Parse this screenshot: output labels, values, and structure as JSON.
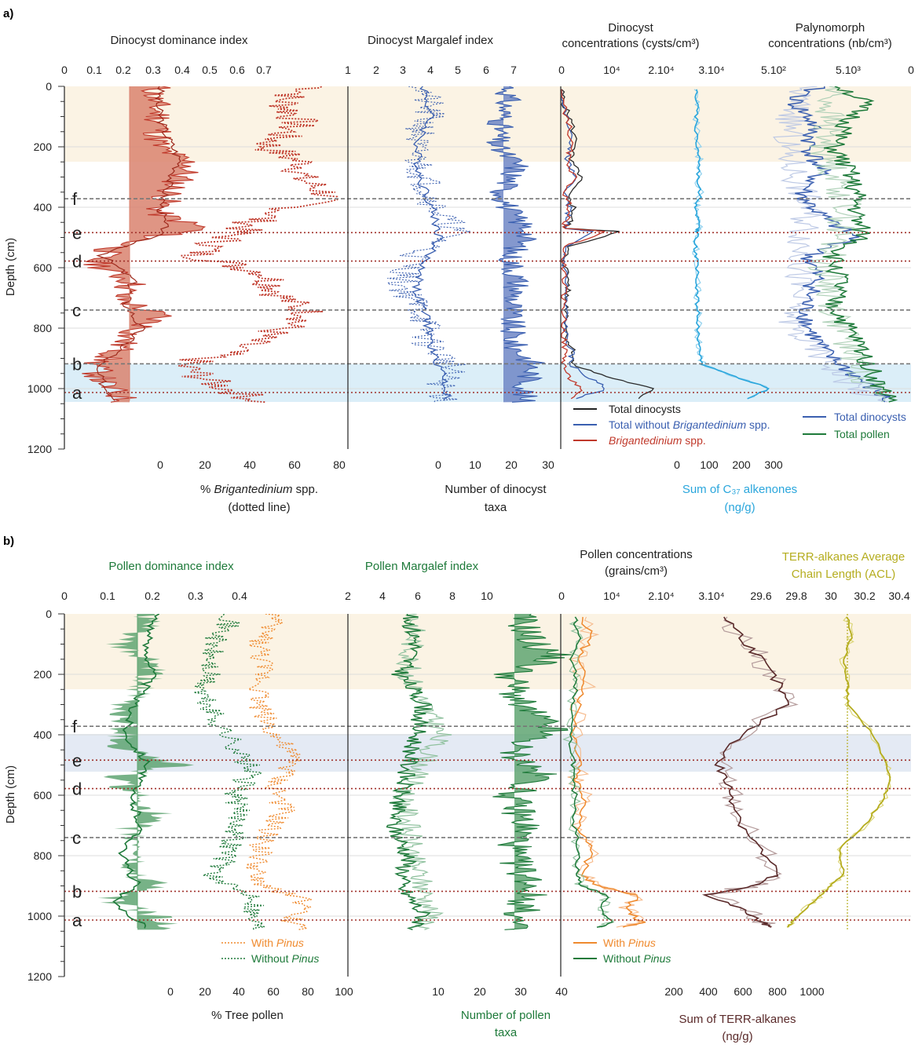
{
  "panel_a": {
    "label": "a)",
    "titles": {
      "dominance": "Dinocyst dominance index",
      "margalef": "Dinocyst Margalef index",
      "conc_line1": "Dinocyst",
      "conc_line2": "concentrations (cysts/cm³)",
      "palyno_line1": "Palynomorph",
      "palyno_line2": "concentrations (nb/cm³)"
    },
    "bottom_labels": {
      "briga_pre": "% ",
      "briga_italic": "Brigantedinium",
      "briga_post": " spp.",
      "briga_line2": "(dotted line)",
      "taxa_line1": "Number of dinocyst",
      "taxa_line2": "taxa",
      "alk_line1": "Sum of C₃₇ alkenones",
      "alk_line2": "(ng/g)"
    },
    "legend": {
      "total": "Total dinocysts",
      "without_pre": "Total without ",
      "without_italic": "Brigantedinium",
      "without_post": " spp.",
      "briga_italic": "Brigantedinium",
      "briga_post": " spp.",
      "palyno_dino": "Total dinocysts",
      "palyno_pollen": "Total pollen"
    }
  },
  "panel_b": {
    "label": "b)",
    "titles": {
      "dominance": "Pollen dominance index",
      "margalef": "Pollen Margalef index",
      "conc_line1": "Pollen concentrations",
      "conc_line2": "(grains/cm³)",
      "acl_line1": "TERR-alkanes Average",
      "acl_line2": "Chain Length (ACL)"
    },
    "bottom_labels": {
      "tree": "% Tree pollen",
      "taxa_line1": "Number of pollen",
      "taxa_line2": "taxa",
      "terr_line1": "Sum of TERR-alkanes",
      "terr_line2": "(ng/g)"
    },
    "legend": {
      "with_pre": "With ",
      "with_italic": "Pinus",
      "without_pre": "Without ",
      "without_italic": "Pinus"
    }
  },
  "depth_axis": {
    "label": "Depth (cm)",
    "ticks": [
      "0",
      "200",
      "400",
      "600",
      "800",
      "1000",
      "1200"
    ],
    "range": [
      0,
      1200
    ]
  },
  "zones": [
    {
      "label": "f",
      "depth": 372,
      "style": "grey"
    },
    {
      "label": "e",
      "depth": 484,
      "style": "red"
    },
    {
      "label": "d",
      "depth": 578,
      "style": "red"
    },
    {
      "label": "c",
      "depth": 740,
      "style": "grey"
    },
    {
      "label": "b",
      "depth": 918,
      "style": "grey-a/red-b"
    },
    {
      "label": "a",
      "depth": 1013,
      "style": "red"
    }
  ],
  "colors": {
    "dino_red": "#c0392b",
    "dino_fill": "#d9826f",
    "dino_blue": "#3a5fb0",
    "alk_cyan": "#2aa6dc",
    "pollen_green": "#1e7a3a",
    "pollen_fill": "#5fa472",
    "pinus_orange": "#ef8a2e",
    "terr_brown": "#5a2a2a",
    "acl_olive": "#b5ad1f",
    "band_top": "#fbf3e4",
    "band_bottom_a": "#dbeef8",
    "band_bottom_b": "#e4eaf4"
  },
  "chart_data": [
    {
      "type": "line",
      "panel": "a",
      "xaxes": {
        "dominance_ticks": [
          "0",
          "0.1",
          "0.2",
          "0.3",
          "0.4",
          "0.5",
          "0.6",
          "0.7"
        ],
        "briga_ticks": [
          "0",
          "20",
          "40",
          "60",
          "80"
        ],
        "margalef_ticks": [
          "1",
          "2",
          "3",
          "4",
          "5",
          "6",
          "7"
        ],
        "taxa_ticks": [
          "0",
          "10",
          "20",
          "30"
        ],
        "conc_ticks": [
          "0",
          "10⁴",
          "2.10⁴",
          "3.10⁴"
        ],
        "palyno_ticks": [
          "5.10²",
          "5.10³",
          "0"
        ],
        "alk_ticks": [
          "0",
          "100",
          "200",
          "300"
        ]
      },
      "ylim": [
        0,
        1200
      ],
      "series": [
        {
          "name": "Total dinocysts",
          "x": [
            0,
            500,
            2000,
            3000,
            1500,
            4000,
            1000,
            2500,
            2000,
            800,
            12000,
            1200,
            600,
            1500,
            900,
            1200,
            1000,
            2500,
            2000,
            9000,
            18000,
            15000
          ],
          "y": [
            10,
            60,
            120,
            200,
            240,
            300,
            360,
            400,
            440,
            470,
            480,
            530,
            580,
            650,
            700,
            760,
            830,
            880,
            920,
            960,
            1000,
            1040
          ]
        },
        {
          "name": "Total without Brigantedinium spp.",
          "x": [
            0,
            300,
            1200,
            2000,
            1000,
            2500,
            800,
            1500,
            1200,
            600,
            6000,
            800,
            500,
            1000,
            700,
            900,
            800,
            2000,
            1800,
            5000,
            9000,
            1500
          ],
          "y": [
            10,
            60,
            120,
            200,
            240,
            300,
            360,
            400,
            440,
            470,
            480,
            530,
            580,
            650,
            700,
            760,
            830,
            880,
            920,
            960,
            1000,
            1040
          ]
        },
        {
          "name": "Brigantedinium spp.",
          "x": [
            0,
            300,
            1500,
            1800,
            1200,
            2500,
            600,
            1800,
            1000,
            500,
            9000,
            600,
            300,
            600,
            400,
            500,
            400,
            700,
            500,
            1200,
            4000,
            1000
          ],
          "y": [
            10,
            60,
            120,
            200,
            240,
            300,
            360,
            400,
            440,
            470,
            480,
            530,
            580,
            650,
            700,
            760,
            830,
            880,
            920,
            960,
            1000,
            1040
          ]
        },
        {
          "name": "Sum of C37 alkenones",
          "x": [
            60,
            62,
            58,
            64,
            70,
            66,
            72,
            60,
            65,
            68,
            62,
            58,
            60,
            64,
            62,
            66,
            64,
            68,
            80,
            180,
            290,
            200
          ],
          "y": [
            10,
            60,
            120,
            200,
            240,
            300,
            360,
            400,
            440,
            470,
            480,
            530,
            580,
            650,
            700,
            760,
            830,
            880,
            920,
            960,
            1000,
            1040
          ]
        }
      ]
    },
    {
      "type": "line",
      "panel": "b",
      "xaxes": {
        "dominance_ticks": [
          "0",
          "0.1",
          "0.2",
          "0.3",
          "0.4"
        ],
        "tree_ticks": [
          "0",
          "20",
          "40",
          "60",
          "80",
          "100"
        ],
        "margalef_ticks": [
          "2",
          "4",
          "6",
          "8",
          "10"
        ],
        "taxa_ticks": [
          "10",
          "20",
          "30",
          "40"
        ],
        "conc_ticks": [
          "0",
          "10⁴",
          "2.10⁴",
          "3.10⁴"
        ],
        "terr_ticks": [
          "200",
          "400",
          "600",
          "800",
          "1000"
        ],
        "acl_ticks": [
          "29.6",
          "29.8",
          "30",
          "30.2",
          "30.4"
        ]
      },
      "ylim": [
        0,
        1200
      ],
      "series": [
        {
          "name": "With Pinus",
          "x": [
            4000,
            6000,
            3000,
            5000,
            3500,
            2500,
            4000,
            3000,
            5000,
            3500,
            6000,
            4000,
            7000,
            15000,
            13000,
            16000,
            12000
          ],
          "y": [
            10,
            80,
            150,
            230,
            300,
            400,
            490,
            550,
            620,
            700,
            780,
            860,
            900,
            930,
            980,
            1020,
            1040
          ]
        },
        {
          "name": "Without Pinus",
          "x": [
            2500,
            3500,
            2000,
            3000,
            2200,
            1500,
            2500,
            2000,
            3000,
            2500,
            3500,
            3000,
            4000,
            9000,
            8000,
            10000,
            7000
          ],
          "y": [
            10,
            80,
            150,
            230,
            300,
            400,
            490,
            550,
            620,
            700,
            780,
            860,
            900,
            930,
            980,
            1020,
            1040
          ]
        },
        {
          "name": "Sum of TERR-alkanes",
          "x": [
            500,
            600,
            700,
            800,
            850,
            600,
            450,
            500,
            550,
            600,
            700,
            800,
            650,
            400,
            600,
            700,
            800
          ],
          "y": [
            10,
            80,
            150,
            230,
            300,
            400,
            490,
            550,
            620,
            700,
            780,
            860,
            900,
            930,
            980,
            1020,
            1040
          ]
        },
        {
          "name": "TERR-alkanes ACL",
          "x": [
            30.1,
            30.12,
            30.08,
            30.1,
            30.1,
            30.25,
            30.32,
            30.35,
            30.3,
            30.2,
            30.05,
            30.08,
            30.0,
            29.95,
            29.85,
            29.78,
            29.75
          ],
          "y": [
            10,
            80,
            150,
            230,
            300,
            400,
            490,
            550,
            620,
            700,
            780,
            860,
            900,
            930,
            980,
            1020,
            1040
          ]
        }
      ]
    }
  ]
}
